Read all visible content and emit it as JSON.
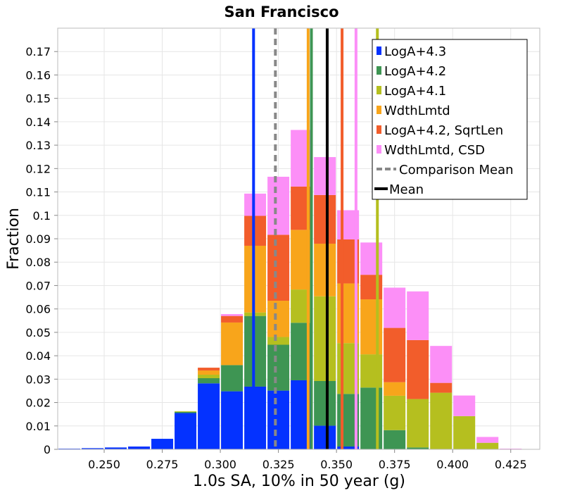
{
  "chart_data": {
    "type": "bar",
    "title": "San Francisco",
    "xlabel": "1.0s SA, 10% in 50 year (g)",
    "ylabel": "Fraction",
    "xlim": [
      0.23,
      0.4375
    ],
    "ylim": [
      0,
      0.18
    ],
    "grid": true,
    "legend_position": "top-right",
    "bin_width": 0.01,
    "bin_centers": [
      0.235,
      0.245,
      0.255,
      0.265,
      0.275,
      0.285,
      0.295,
      0.305,
      0.315,
      0.325,
      0.335,
      0.345,
      0.355,
      0.365,
      0.375,
      0.385,
      0.395,
      0.405,
      0.415,
      0.425
    ],
    "x_ticks": [
      "0.250",
      "0.275",
      "0.300",
      "0.325",
      "0.350",
      "0.375",
      "0.400",
      "0.425"
    ],
    "x_tick_values": [
      0.25,
      0.275,
      0.3,
      0.325,
      0.35,
      0.375,
      0.4,
      0.425
    ],
    "y_ticks": [
      "0",
      "0.01",
      "0.02",
      "0.03",
      "0.04",
      "0.05",
      "0.06",
      "0.07",
      "0.08",
      "0.09",
      "0.1",
      "0.11",
      "0.12",
      "0.13",
      "0.14",
      "0.15",
      "0.16",
      "0.17"
    ],
    "y_tick_values": [
      0,
      0.01,
      0.02,
      0.03,
      0.04,
      0.05,
      0.06,
      0.07,
      0.08,
      0.09,
      0.1,
      0.11,
      0.12,
      0.13,
      0.14,
      0.15,
      0.16,
      0.17
    ],
    "series": [
      {
        "name": "LogA+4.3",
        "color": "#0432ff",
        "values": [
          0.0003,
          0.0005,
          0.0008,
          0.0012,
          0.0045,
          0.0155,
          0.0282,
          0.0248,
          0.0268,
          0.0251,
          0.0295,
          0.0101,
          0.0012,
          0,
          0,
          0,
          0,
          0,
          0,
          0
        ]
      },
      {
        "name": "LogA+4.2",
        "color": "#3e9553",
        "values": [
          0,
          0,
          0,
          0,
          0,
          0.0005,
          0.0022,
          0.0112,
          0.0302,
          0.0196,
          0.0246,
          0.0191,
          0.0225,
          0.0264,
          0.0082,
          0.0008,
          0,
          0,
          0,
          0
        ]
      },
      {
        "name": "LogA+4.1",
        "color": "#b5bf1f",
        "values": [
          0,
          0,
          0,
          0,
          0,
          0.0003,
          0.0015,
          0,
          0.0015,
          0.0033,
          0.0142,
          0.0362,
          0.0217,
          0.0142,
          0.0147,
          0.0207,
          0.0242,
          0.0142,
          0.0028,
          0
        ]
      },
      {
        "name": "WdthLmtd",
        "color": "#f8a51b",
        "values": [
          0,
          0,
          0,
          0,
          0,
          0,
          0.0018,
          0.0182,
          0.0285,
          0.0155,
          0.0255,
          0.0225,
          0.0255,
          0.0235,
          0.0058,
          0,
          0,
          0,
          0,
          0
        ]
      },
      {
        "name": "LogA+4.2, SqrtLen",
        "color": "#f25d2b",
        "values": [
          0,
          0,
          0,
          0,
          0,
          0,
          0.0012,
          0.0028,
          0.0128,
          0.0282,
          0.0185,
          0.0208,
          0.0188,
          0.0105,
          0.0232,
          0.0252,
          0.0042,
          0,
          0,
          0
        ]
      },
      {
        "name": "WdthLmtd, CSD",
        "color": "#fc8ff7",
        "values": [
          0,
          0,
          0,
          0,
          0,
          0,
          0,
          0.0008,
          0.0095,
          0.0248,
          0.0242,
          0.0162,
          0.0125,
          0.0138,
          0.0172,
          0.0208,
          0.0158,
          0.0088,
          0.0025,
          0.0003
        ]
      }
    ],
    "vertical_lines": [
      {
        "label": "LogA+4.3",
        "x": 0.3143,
        "color": "#0432ff",
        "style": "solid"
      },
      {
        "label": "Comparison Mean",
        "x": 0.3237,
        "color": "#888888",
        "style": "dashed"
      },
      {
        "label": "WdthLmtd",
        "x": 0.3378,
        "color": "#f8a51b",
        "style": "solid"
      },
      {
        "label": "LogA+4.2",
        "x": 0.3392,
        "color": "#3e9553",
        "style": "solid"
      },
      {
        "label": "Mean",
        "x": 0.346,
        "color": "#000000",
        "style": "solid"
      },
      {
        "label": "LogA+4.2, SqrtLen",
        "x": 0.3524,
        "color": "#f25d2b",
        "style": "solid"
      },
      {
        "label": "WdthLmtd, CSD",
        "x": 0.3584,
        "color": "#fc8ff7",
        "style": "solid"
      },
      {
        "label": "LogA+4.1",
        "x": 0.3676,
        "color": "#b5bf1f",
        "style": "solid"
      }
    ],
    "legend": [
      {
        "label": "LogA+4.3",
        "color": "#0432ff",
        "kind": "box"
      },
      {
        "label": "LogA+4.2",
        "color": "#3e9553",
        "kind": "box"
      },
      {
        "label": "LogA+4.1",
        "color": "#b5bf1f",
        "kind": "box"
      },
      {
        "label": "WdthLmtd",
        "color": "#f8a51b",
        "kind": "box"
      },
      {
        "label": "LogA+4.2, SqrtLen",
        "color": "#f25d2b",
        "kind": "box"
      },
      {
        "label": "WdthLmtd, CSD",
        "color": "#fc8ff7",
        "kind": "box"
      },
      {
        "label": "Comparison Mean",
        "color": "#888888",
        "kind": "dashed"
      },
      {
        "label": "Mean",
        "color": "#000000",
        "kind": "line"
      }
    ]
  }
}
